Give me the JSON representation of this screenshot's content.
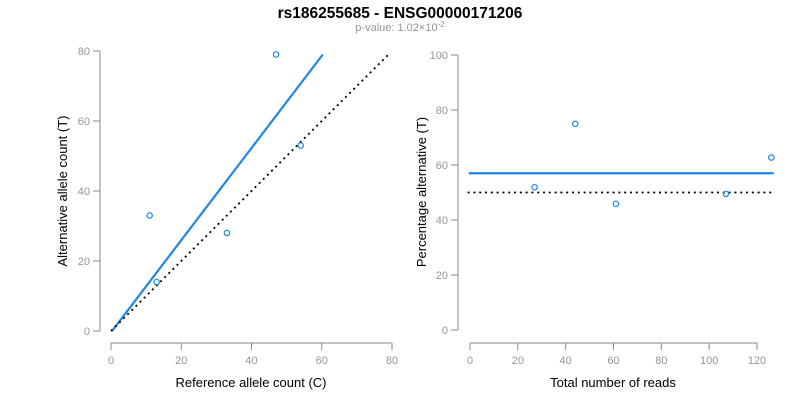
{
  "title": "rs186255685 - ENSG00000171206",
  "subtitle": {
    "prefix": "p-value: 1.02×10",
    "exponent": "-2"
  },
  "colors": {
    "accent": "#1E87E5",
    "reference": "#000000",
    "axis": "#8A8A8A",
    "muted": "#969696"
  },
  "chart_data": [
    {
      "type": "scatter",
      "name": "allele-count-scatter",
      "xlabel": "Reference allele count (C)",
      "ylabel": "Alternative allele count (T)",
      "xlim": [
        0,
        80
      ],
      "ylim": [
        0,
        80
      ],
      "xticks": [
        0,
        20,
        40,
        60,
        80
      ],
      "yticks": [
        0,
        20,
        40,
        60,
        80
      ],
      "grid": false,
      "marker": "open-circle",
      "points": [
        [
          11,
          33
        ],
        [
          13,
          14
        ],
        [
          33,
          28
        ],
        [
          47,
          79
        ],
        [
          54,
          53
        ]
      ],
      "lines": [
        {
          "name": "fitted-allelic-ratio-line",
          "style": "solid",
          "x": [
            0.3,
            60.3
          ],
          "y": [
            0,
            79
          ]
        },
        {
          "name": "identity-reference-line",
          "style": "dotted",
          "x": [
            0,
            79.5
          ],
          "y": [
            0,
            79.5
          ]
        }
      ]
    },
    {
      "type": "scatter",
      "name": "percentage-alternative-scatter",
      "xlabel": "Total number of reads",
      "ylabel": "Percentage alternative (T)",
      "xlim": [
        0,
        127
      ],
      "ylim": [
        0,
        100
      ],
      "xticks": [
        0,
        20,
        40,
        60,
        80,
        100,
        120
      ],
      "yticks": [
        0,
        20,
        40,
        60,
        80,
        100
      ],
      "grid": false,
      "marker": "open-circle",
      "points": [
        [
          27,
          51.9
        ],
        [
          44,
          75
        ],
        [
          61,
          45.9
        ],
        [
          107,
          49.5
        ],
        [
          126,
          62.7
        ]
      ],
      "lines": [
        {
          "name": "mean-percentage-line",
          "style": "solid",
          "x": [
            -0.5,
            127
          ],
          "y": [
            57,
            57
          ]
        },
        {
          "name": "fifty-percent-reference-line",
          "style": "dotted",
          "x": [
            -1,
            126
          ],
          "y": [
            50,
            50
          ]
        }
      ]
    }
  ]
}
